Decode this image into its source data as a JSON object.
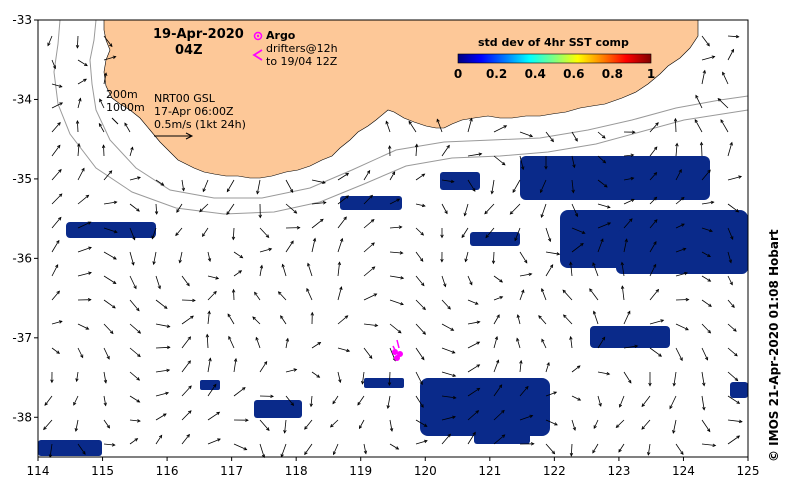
{
  "map": {
    "title_date": "19-Apr-2020",
    "title_time": "04Z",
    "argo_label": "Argo",
    "drifters_label": "drifters@12h",
    "drifters_range": "to 19/04 12Z",
    "depth_contour_1": "200m",
    "depth_contour_2": "1000m",
    "current_source": "NRT00 GSL",
    "current_time": "17-Apr 06:00Z",
    "current_scale": "0.5m/s (1kt 24h)",
    "legend_title": "std dev of 4hr SST comp",
    "legend_ticks": [
      "0",
      "0.2",
      "0.4",
      "0.6",
      "0.8",
      "1"
    ],
    "credit": "© IMOS 21-Apr-2020 01:08 Hobart",
    "lon_ticks": [
      "114",
      "115",
      "116",
      "117",
      "118",
      "119",
      "120",
      "121",
      "122",
      "123",
      "124",
      "125"
    ],
    "lat_ticks": [
      "-33",
      "-34",
      "-35",
      "-36",
      "-37",
      "-38"
    ],
    "lon_range": [
      114,
      125
    ],
    "lat_range": [
      -38.5,
      -33
    ],
    "colors": {
      "land": "#fdc898",
      "sea": "#ffffff",
      "sst_patch": "#0a2a8a",
      "argo_marker": "#ff00ff",
      "drifters": "#ff00ff",
      "isobath": "#9a9a9a"
    },
    "colorscale": [
      "#000080",
      "#0000ff",
      "#0080ff",
      "#00ffff",
      "#80ff80",
      "#ffff00",
      "#ff8000",
      "#ff0000",
      "#800000"
    ]
  }
}
